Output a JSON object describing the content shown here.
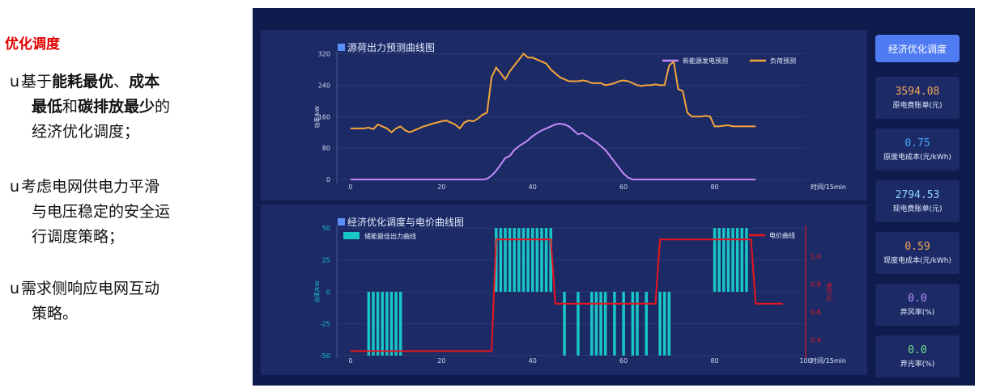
{
  "left": {
    "title": "优化调度",
    "marker": "u",
    "b1_pre": "基于",
    "b1_bold1": "能耗最优",
    "b1_sep1": "、",
    "b1_bold2": "成本",
    "b1_bold3": "最低",
    "b1_mid": "和",
    "b1_bold4": "碳排放最少",
    "b1_post": "的",
    "b1_line3": "经济优化调度；",
    "b2_line1": "考虑电网供电力平滑",
    "b2_line2": "与电压稳定的安全运",
    "b2_line3": "行调度策略；",
    "b3_line1": "需求侧响应电网互动",
    "b3_line2": "策略。"
  },
  "dashboard": {
    "button_label": "经济优化调度",
    "cards": [
      {
        "value": "3594.08",
        "label": "原电费账单(元)",
        "color": "#f5a55a"
      },
      {
        "value": "0.75",
        "label": "原度电成本(元/kWh)",
        "color": "#4aa6ff"
      },
      {
        "value": "2794.53",
        "label": "现电费账单(元)",
        "color": "#8fd3ff"
      },
      {
        "value": "0.59",
        "label": "现度电成本(元/kWh)",
        "color": "#f5a55a"
      },
      {
        "value": "0.0",
        "label": "弃风率(%)",
        "color": "#b98cff"
      },
      {
        "value": "0.0",
        "label": "弃光率(%)",
        "color": "#6fe38f"
      }
    ]
  },
  "chart_data": [
    {
      "type": "line",
      "title": "源荷出力预测曲线图",
      "ylabel": "功率/kW",
      "xlabel": "时间/15min",
      "ylim": [
        -10,
        325
      ],
      "xlim": [
        -3,
        100
      ],
      "yticks": [
        0,
        80,
        160,
        240,
        320
      ],
      "xticks": [
        0,
        20,
        40,
        60,
        80
      ],
      "legend_position": "top-right",
      "grid": true,
      "x_start": 0,
      "series": [
        {
          "name": "新能源发电预测",
          "color": "#c58af9",
          "values": [
            0,
            0,
            0,
            0,
            0,
            0,
            0,
            0,
            0,
            0,
            0,
            0,
            0,
            0,
            0,
            0,
            0,
            0,
            0,
            0,
            0,
            0,
            0,
            0,
            0,
            0,
            0,
            0,
            0,
            0,
            2,
            10,
            22,
            38,
            55,
            60,
            75,
            85,
            92,
            100,
            110,
            118,
            125,
            130,
            135,
            140,
            142,
            140,
            135,
            125,
            115,
            118,
            110,
            102,
            95,
            85,
            75,
            60,
            45,
            30,
            15,
            5,
            0,
            0,
            0,
            0,
            0,
            0,
            0,
            0,
            0,
            0,
            0,
            0,
            0,
            0,
            0,
            0,
            0,
            0,
            0,
            0,
            0,
            0,
            0,
            0,
            0,
            0,
            0,
            0
          ]
        },
        {
          "name": "负荷预测",
          "color": "#f5a53a",
          "values": [
            130,
            130,
            130,
            130,
            132,
            128,
            140,
            135,
            130,
            120,
            130,
            135,
            125,
            120,
            125,
            130,
            135,
            138,
            142,
            145,
            148,
            150,
            145,
            140,
            130,
            145,
            150,
            148,
            155,
            165,
            170,
            260,
            285,
            270,
            255,
            275,
            290,
            305,
            320,
            310,
            310,
            305,
            300,
            295,
            280,
            270,
            260,
            255,
            250,
            250,
            250,
            252,
            250,
            245,
            245,
            245,
            240,
            242,
            245,
            250,
            252,
            250,
            245,
            240,
            238,
            240,
            240,
            242,
            240,
            240,
            290,
            300,
            230,
            225,
            170,
            160,
            160,
            160,
            162,
            160,
            135,
            135,
            137,
            138,
            135,
            135,
            135,
            135,
            135,
            135
          ]
        }
      ]
    },
    {
      "type": "bar",
      "title": "经济优化调度与电价曲线图",
      "ylabel": "功率/kW",
      "y2label": "电价/元",
      "xlabel": "时间/15min",
      "ylim": [
        -52,
        52
      ],
      "y2lim": [
        0.27,
        1.22
      ],
      "xlim": [
        -3,
        100
      ],
      "yticks": [
        -50,
        -25,
        0,
        25,
        50
      ],
      "y2ticks": [
        0.4,
        0.6,
        0.8,
        1.0
      ],
      "xticks": [
        0,
        20,
        40,
        60,
        80,
        100
      ],
      "legend_position": "top",
      "grid": true,
      "series": [
        {
          "name": "储能最佳出力曲线",
          "color": "#19c6c6",
          "x": [
            4,
            5,
            6,
            7,
            8,
            9,
            10,
            11,
            32,
            33,
            34,
            35,
            36,
            37,
            38,
            39,
            40,
            41,
            42,
            43,
            44,
            47,
            50,
            53,
            54,
            55,
            56,
            58,
            60,
            62,
            63,
            65,
            68,
            69,
            70,
            80,
            81,
            82,
            83,
            84,
            85,
            86,
            87
          ],
          "values": [
            -50,
            -50,
            -50,
            -50,
            -50,
            -50,
            -50,
            -50,
            50,
            50,
            50,
            50,
            50,
            50,
            50,
            50,
            50,
            50,
            50,
            50,
            50,
            -50,
            -50,
            -50,
            -50,
            -50,
            -50,
            -50,
            -50,
            -50,
            -50,
            -50,
            -50,
            -50,
            -50,
            50,
            50,
            50,
            50,
            50,
            50,
            50,
            50
          ]
        },
        {
          "name": "电价曲线",
          "color": "#e8141e",
          "axis": "right",
          "x": [
            0,
            31,
            32,
            44,
            45,
            67,
            68,
            88,
            89,
            95
          ],
          "values": [
            0.32,
            0.32,
            1.12,
            1.12,
            0.66,
            0.66,
            1.12,
            1.12,
            0.66,
            0.66
          ]
        }
      ]
    }
  ]
}
